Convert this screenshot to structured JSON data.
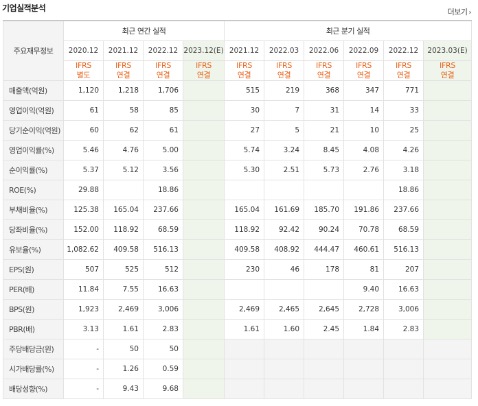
{
  "header": {
    "title": "기업실적분석",
    "more_label": "더보기",
    "more_icon": "chevron-right-icon"
  },
  "table": {
    "stub_label": "주요재무정보",
    "annual_group_label": "최근 연간 실적",
    "quarter_group_label": "최근 분기 실적",
    "periods": [
      "2020.12",
      "2021.12",
      "2022.12",
      "2023.12(E)",
      "2021.12",
      "2022.03",
      "2022.06",
      "2022.09",
      "2022.12",
      "2023.03(E)"
    ],
    "types": [
      [
        "IFRS",
        "별도"
      ],
      [
        "IFRS",
        "연결"
      ],
      [
        "IFRS",
        "연결"
      ],
      [
        "IFRS",
        "연결"
      ],
      [
        "IFRS",
        "연결"
      ],
      [
        "IFRS",
        "연결"
      ],
      [
        "IFRS",
        "연결"
      ],
      [
        "IFRS",
        "연결"
      ],
      [
        "IFRS",
        "연결"
      ],
      [
        "IFRS",
        "연결"
      ]
    ],
    "rows": [
      {
        "label": "매출액(억원)",
        "values": [
          "1,120",
          "1,218",
          "1,706",
          "",
          "515",
          "219",
          "368",
          "347",
          "771",
          ""
        ]
      },
      {
        "label": "영업이익(억원)",
        "values": [
          "61",
          "58",
          "85",
          "",
          "30",
          "7",
          "31",
          "14",
          "33",
          ""
        ]
      },
      {
        "label": "당기순이익(억원)",
        "values": [
          "60",
          "62",
          "61",
          "",
          "27",
          "5",
          "21",
          "10",
          "25",
          ""
        ]
      },
      {
        "label": "영업이익률(%)",
        "values": [
          "5.46",
          "4.76",
          "5.00",
          "",
          "5.74",
          "3.24",
          "8.45",
          "4.08",
          "4.26",
          ""
        ]
      },
      {
        "label": "순이익률(%)",
        "values": [
          "5.37",
          "5.12",
          "3.56",
          "",
          "5.30",
          "2.51",
          "5.73",
          "2.76",
          "3.18",
          ""
        ]
      },
      {
        "label": "ROE(%)",
        "values": [
          "29.88",
          "",
          "18.86",
          "",
          "",
          "",
          "",
          "",
          "18.86",
          ""
        ]
      },
      {
        "label": "부채비율(%)",
        "values": [
          "125.38",
          "165.04",
          "237.66",
          "",
          "165.04",
          "161.69",
          "185.70",
          "191.86",
          "237.66",
          ""
        ]
      },
      {
        "label": "당좌비율(%)",
        "values": [
          "152.00",
          "118.92",
          "68.59",
          "",
          "118.92",
          "92.42",
          "90.24",
          "70.78",
          "68.59",
          ""
        ]
      },
      {
        "label": "유보율(%)",
        "values": [
          "1,082.62",
          "409.58",
          "516.13",
          "",
          "409.58",
          "408.92",
          "444.47",
          "460.61",
          "516.13",
          ""
        ]
      },
      {
        "label": "EPS(원)",
        "values": [
          "507",
          "525",
          "512",
          "",
          "230",
          "46",
          "178",
          "81",
          "207",
          ""
        ]
      },
      {
        "label": "PER(배)",
        "values": [
          "11.84",
          "7.55",
          "16.63",
          "",
          "",
          "",
          "",
          "9.40",
          "16.63",
          ""
        ]
      },
      {
        "label": "BPS(원)",
        "values": [
          "1,923",
          "2,469",
          "3,006",
          "",
          "2,469",
          "2,465",
          "2,645",
          "2,728",
          "3,006",
          ""
        ]
      },
      {
        "label": "PBR(배)",
        "values": [
          "3.13",
          "1.61",
          "2.83",
          "",
          "1.61",
          "1.60",
          "2.45",
          "1.84",
          "2.83",
          ""
        ]
      },
      {
        "label": "주당배당금(원)",
        "values": [
          "-",
          "50",
          "50",
          "",
          "",
          "",
          "",
          "",
          "",
          ""
        ]
      },
      {
        "label": "시가배당률(%)",
        "values": [
          "-",
          "1.26",
          "0.59",
          "",
          "",
          "",
          "",
          "",
          "",
          ""
        ]
      },
      {
        "label": "배당성향(%)",
        "values": [
          "-",
          "9.43",
          "9.68",
          "",
          "",
          "",
          "",
          "",
          "",
          ""
        ]
      }
    ]
  }
}
